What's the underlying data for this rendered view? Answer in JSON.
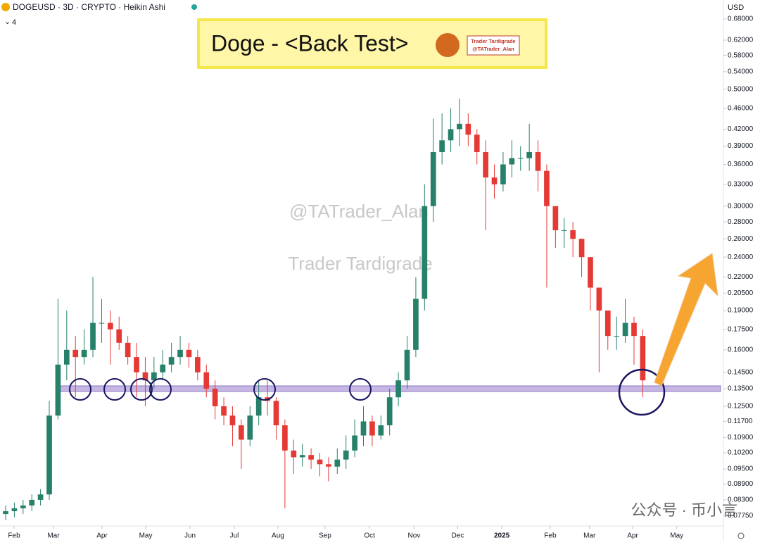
{
  "header": {
    "symbol": "DOGEUSD · 3D · CRYPTO · Heikin Ashi",
    "interval_count": "4",
    "currency": "USD"
  },
  "banner": {
    "title": "Doge - <Back Test>",
    "logo_name": "Trader Tardigrade",
    "logo_handle": "@TATrader_Alan"
  },
  "watermarks": [
    "@TATrader_Alan",
    "Trader Tardigrade"
  ],
  "footer_note": "公众号 · 币小言",
  "chart_data": {
    "type": "candlestick",
    "yscale": "log",
    "ylim": [
      0.0745,
      0.739
    ],
    "xlim": [
      -0.645,
      82.0
    ],
    "up_color": "#26806a",
    "down_color": "#e53935",
    "support_level": 0.135,
    "support_color": "#b39ddb",
    "yticks": [
      {
        "value": 0.68,
        "label": "0.68000"
      },
      {
        "value": 0.62,
        "label": "0.62000"
      },
      {
        "value": 0.58,
        "label": "0.58000"
      },
      {
        "value": 0.54,
        "label": "0.54000"
      },
      {
        "value": 0.5,
        "label": "0.50000"
      },
      {
        "value": 0.46,
        "label": "0.46000"
      },
      {
        "value": 0.42,
        "label": "0.42000"
      },
      {
        "value": 0.39,
        "label": "0.39000"
      },
      {
        "value": 0.36,
        "label": "0.36000"
      },
      {
        "value": 0.33,
        "label": "0.33000"
      },
      {
        "value": 0.3,
        "label": "0.30000"
      },
      {
        "value": 0.28,
        "label": "0.28000"
      },
      {
        "value": 0.26,
        "label": "0.26000"
      },
      {
        "value": 0.24,
        "label": "0.24000"
      },
      {
        "value": 0.22,
        "label": "0.22000"
      },
      {
        "value": 0.205,
        "label": "0.20500"
      },
      {
        "value": 0.19,
        "label": "0.19000"
      },
      {
        "value": 0.175,
        "label": "0.17500"
      },
      {
        "value": 0.16,
        "label": "0.16000"
      },
      {
        "value": 0.145,
        "label": "0.14500"
      },
      {
        "value": 0.135,
        "label": "0.13500"
      },
      {
        "value": 0.125,
        "label": "0.12500"
      },
      {
        "value": 0.117,
        "label": "0.11700"
      },
      {
        "value": 0.109,
        "label": "0.10900"
      },
      {
        "value": 0.102,
        "label": "0.10200"
      },
      {
        "value": 0.095,
        "label": "0.09500"
      },
      {
        "value": 0.089,
        "label": "0.08900"
      },
      {
        "value": 0.083,
        "label": "0.08300"
      },
      {
        "value": 0.0775,
        "label": "0.07750"
      }
    ],
    "xticks": [
      {
        "value": 0.97,
        "label": "Feb"
      },
      {
        "value": 5.48,
        "label": "Mar"
      },
      {
        "value": 11.05,
        "label": "Apr"
      },
      {
        "value": 16.05,
        "label": "May"
      },
      {
        "value": 21.13,
        "label": "Jun"
      },
      {
        "value": 26.2,
        "label": "Jul"
      },
      {
        "value": 31.2,
        "label": "Aug"
      },
      {
        "value": 36.6,
        "label": "Sep"
      },
      {
        "value": 41.7,
        "label": "Oct"
      },
      {
        "value": 46.8,
        "label": "Nov"
      },
      {
        "value": 51.8,
        "label": "Dec"
      },
      {
        "value": 56.85,
        "label": "2025"
      },
      {
        "value": 62.4,
        "label": "Feb"
      },
      {
        "value": 66.9,
        "label": "Mar"
      },
      {
        "value": 71.85,
        "label": "Apr"
      },
      {
        "value": 76.9,
        "label": "May"
      }
    ],
    "candles": {
      "open": [
        0.078,
        0.079,
        0.08,
        0.081,
        0.083,
        0.085,
        0.12,
        0.15,
        0.16,
        0.155,
        0.16,
        0.18,
        0.18,
        0.175,
        0.165,
        0.155,
        0.145,
        0.14,
        0.145,
        0.15,
        0.155,
        0.16,
        0.155,
        0.145,
        0.135,
        0.125,
        0.12,
        0.115,
        0.108,
        0.12,
        0.13,
        0.128,
        0.115,
        0.103,
        0.1,
        0.101,
        0.099,
        0.097,
        0.096,
        0.099,
        0.103,
        0.11,
        0.117,
        0.11,
        0.115,
        0.13,
        0.14,
        0.16,
        0.2,
        0.3,
        0.38,
        0.4,
        0.42,
        0.43,
        0.41,
        0.38,
        0.34,
        0.33,
        0.36,
        0.37,
        0.37,
        0.38,
        0.35,
        0.3,
        0.27,
        0.27,
        0.26,
        0.24,
        0.21,
        0.19,
        0.17,
        0.17,
        0.18,
        0.17
      ],
      "high": [
        0.081,
        0.082,
        0.083,
        0.085,
        0.087,
        0.128,
        0.2,
        0.19,
        0.17,
        0.175,
        0.22,
        0.2,
        0.19,
        0.185,
        0.17,
        0.165,
        0.155,
        0.155,
        0.16,
        0.165,
        0.17,
        0.165,
        0.16,
        0.15,
        0.14,
        0.13,
        0.125,
        0.118,
        0.125,
        0.14,
        0.14,
        0.13,
        0.118,
        0.108,
        0.106,
        0.104,
        0.102,
        0.1,
        0.104,
        0.11,
        0.118,
        0.125,
        0.12,
        0.12,
        0.135,
        0.145,
        0.17,
        0.22,
        0.33,
        0.44,
        0.45,
        0.46,
        0.48,
        0.45,
        0.42,
        0.4,
        0.36,
        0.38,
        0.4,
        0.39,
        0.43,
        0.4,
        0.36,
        0.29,
        0.285,
        0.28,
        0.26,
        0.24,
        0.21,
        0.19,
        0.185,
        0.2,
        0.185,
        0.175
      ],
      "low": [
        0.076,
        0.077,
        0.078,
        0.079,
        0.081,
        0.083,
        0.118,
        0.14,
        0.13,
        0.15,
        0.155,
        0.165,
        0.15,
        0.16,
        0.15,
        0.13,
        0.125,
        0.135,
        0.14,
        0.145,
        0.15,
        0.148,
        0.14,
        0.13,
        0.118,
        0.115,
        0.105,
        0.095,
        0.105,
        0.115,
        0.12,
        0.108,
        0.08,
        0.093,
        0.096,
        0.095,
        0.092,
        0.09,
        0.093,
        0.095,
        0.1,
        0.105,
        0.105,
        0.108,
        0.11,
        0.125,
        0.135,
        0.155,
        0.19,
        0.28,
        0.36,
        0.38,
        0.39,
        0.39,
        0.36,
        0.27,
        0.31,
        0.32,
        0.34,
        0.35,
        0.35,
        0.32,
        0.21,
        0.25,
        0.25,
        0.24,
        0.22,
        0.19,
        0.145,
        0.16,
        0.16,
        0.165,
        0.15,
        0.13
      ],
      "close": [
        0.079,
        0.08,
        0.081,
        0.083,
        0.085,
        0.12,
        0.15,
        0.16,
        0.155,
        0.16,
        0.18,
        0.18,
        0.175,
        0.165,
        0.155,
        0.145,
        0.14,
        0.145,
        0.15,
        0.155,
        0.16,
        0.155,
        0.145,
        0.135,
        0.125,
        0.12,
        0.115,
        0.108,
        0.12,
        0.13,
        0.128,
        0.115,
        0.103,
        0.1,
        0.101,
        0.099,
        0.097,
        0.096,
        0.099,
        0.103,
        0.11,
        0.117,
        0.11,
        0.115,
        0.13,
        0.14,
        0.16,
        0.2,
        0.3,
        0.38,
        0.4,
        0.42,
        0.43,
        0.41,
        0.38,
        0.34,
        0.33,
        0.36,
        0.37,
        0.37,
        0.38,
        0.35,
        0.3,
        0.27,
        0.27,
        0.26,
        0.24,
        0.21,
        0.19,
        0.17,
        0.17,
        0.18,
        0.17,
        0.14
      ]
    }
  }
}
